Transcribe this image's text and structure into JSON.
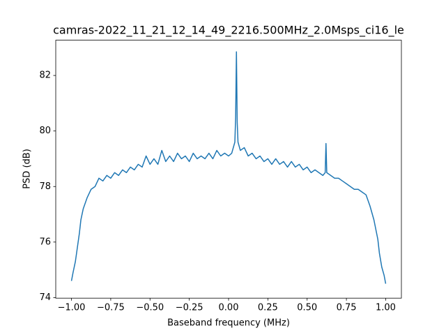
{
  "chart_data": {
    "type": "line",
    "title": "camras-2022_11_21_12_14_49_2216.500MHz_2.0Msps_ci16_le",
    "xlabel": "Baseband frequency (MHz)",
    "ylabel": "PSD (dB)",
    "color": "#1f77b4",
    "x": [
      -1,
      -0.99,
      -0.975,
      -0.96,
      -0.95,
      -0.94,
      -0.925,
      -0.9,
      -0.875,
      -0.85,
      -0.825,
      -0.8,
      -0.775,
      -0.75,
      -0.725,
      -0.7,
      -0.675,
      -0.65,
      -0.625,
      -0.6,
      -0.575,
      -0.55,
      -0.525,
      -0.5,
      -0.475,
      -0.45,
      -0.425,
      -0.4,
      -0.375,
      -0.35,
      -0.325,
      -0.3,
      -0.275,
      -0.25,
      -0.225,
      -0.2,
      -0.175,
      -0.15,
      -0.125,
      -0.1,
      -0.075,
      -0.05,
      -0.025,
      0,
      0.02,
      0.04,
      0.045,
      0.05,
      0.055,
      0.06,
      0.075,
      0.1,
      0.125,
      0.15,
      0.175,
      0.2,
      0.225,
      0.25,
      0.275,
      0.3,
      0.325,
      0.35,
      0.375,
      0.4,
      0.425,
      0.45,
      0.475,
      0.5,
      0.525,
      0.55,
      0.575,
      0.6,
      0.615,
      0.62,
      0.625,
      0.65,
      0.675,
      0.7,
      0.725,
      0.75,
      0.775,
      0.8,
      0.825,
      0.85,
      0.875,
      0.9,
      0.925,
      0.95,
      0.96,
      0.975,
      0.99,
      1
    ],
    "values": [
      74.6,
      74.9,
      75.3,
      75.9,
      76.3,
      76.8,
      77.2,
      77.6,
      77.9,
      78.0,
      78.3,
      78.2,
      78.4,
      78.3,
      78.5,
      78.4,
      78.6,
      78.5,
      78.7,
      78.6,
      78.8,
      78.7,
      79.1,
      78.8,
      79.0,
      78.8,
      79.3,
      78.9,
      79.1,
      78.9,
      79.2,
      79.0,
      79.1,
      78.9,
      79.2,
      79.0,
      79.1,
      79.0,
      79.2,
      79.0,
      79.3,
      79.1,
      79.2,
      79.1,
      79.2,
      79.6,
      80.5,
      82.85,
      80.3,
      79.6,
      79.3,
      79.4,
      79.1,
      79.2,
      79.0,
      79.1,
      78.9,
      79.0,
      78.8,
      79.0,
      78.8,
      78.9,
      78.7,
      78.9,
      78.7,
      78.8,
      78.6,
      78.7,
      78.5,
      78.6,
      78.5,
      78.4,
      78.5,
      79.55,
      78.5,
      78.4,
      78.3,
      78.3,
      78.2,
      78.1,
      78.0,
      77.9,
      77.9,
      77.8,
      77.7,
      77.3,
      76.8,
      76.1,
      75.6,
      75.1,
      74.8,
      74.5
    ],
    "xlim": [
      -1.1,
      1.1
    ],
    "ylim": [
      73.98,
      83.27
    ],
    "xticks": [
      {
        "value": -1,
        "label": "−1.00"
      },
      {
        "value": -0.75,
        "label": "−0.75"
      },
      {
        "value": -0.5,
        "label": "−0.50"
      },
      {
        "value": -0.25,
        "label": "−0.25"
      },
      {
        "value": 0,
        "label": "0.00"
      },
      {
        "value": 0.25,
        "label": "0.25"
      },
      {
        "value": 0.5,
        "label": "0.50"
      },
      {
        "value": 0.75,
        "label": "0.75"
      },
      {
        "value": 1,
        "label": "1.00"
      }
    ],
    "yticks": [
      74,
      76,
      78,
      80,
      82
    ]
  }
}
